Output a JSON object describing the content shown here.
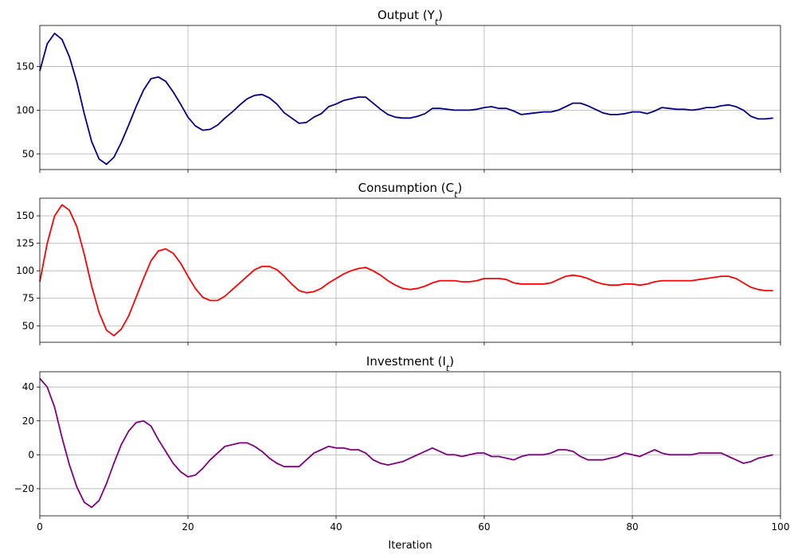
{
  "chart_data": [
    {
      "type": "line",
      "title": "Output (Y",
      "title_sub": "t",
      "color": "#00008b",
      "xlim": [
        0,
        100
      ],
      "ylim": [
        32,
        197
      ],
      "xticks": [
        0,
        20,
        40,
        60,
        80,
        100
      ],
      "yticks": [
        50,
        100,
        150
      ],
      "show_xtick_labels": false,
      "xlabel": "",
      "grid": true,
      "series": [
        {
          "x": [
            0,
            1,
            2,
            3,
            4,
            5,
            6,
            7,
            8,
            9,
            10,
            11,
            12,
            13,
            14,
            15,
            16,
            17,
            18,
            19,
            20,
            21,
            22,
            23,
            24,
            25,
            26,
            27,
            28,
            29,
            30,
            31,
            32,
            33,
            34,
            35,
            36,
            37,
            38,
            39,
            40,
            41,
            42,
            43,
            44,
            45,
            46,
            47,
            48,
            49,
            50,
            51,
            52,
            53,
            54,
            55,
            56,
            57,
            58,
            59,
            60,
            61,
            62,
            63,
            64,
            65,
            66,
            67,
            68,
            69,
            70,
            71,
            72,
            73,
            74,
            75,
            76,
            77,
            78,
            79,
            80,
            81,
            82,
            83,
            84,
            85,
            86,
            87,
            88,
            89,
            90,
            91,
            92,
            93,
            94,
            95,
            96,
            97,
            98,
            99
          ],
          "values": [
            145,
            176,
            188,
            181,
            161,
            132,
            96,
            64,
            44,
            38,
            46,
            63,
            83,
            104,
            123,
            136,
            138,
            133,
            121,
            107,
            92,
            82,
            77,
            78,
            83,
            91,
            98,
            106,
            113,
            117,
            118,
            114,
            107,
            97,
            91,
            85,
            86,
            92,
            96,
            104,
            107,
            111,
            113,
            115,
            115,
            108,
            101,
            95,
            92,
            91,
            91,
            93,
            96,
            102,
            102,
            101,
            100,
            100,
            100,
            101,
            103,
            104,
            102,
            102,
            99,
            95,
            96,
            97,
            98,
            98,
            100,
            104,
            108,
            108,
            105,
            101,
            97,
            95,
            95,
            96,
            98,
            98,
            96,
            99,
            103,
            102,
            101,
            101,
            100,
            101,
            103,
            103,
            105,
            106,
            104,
            100,
            93,
            90,
            90,
            91
          ]
        }
      ]
    },
    {
      "type": "line",
      "title": "Consumption (C",
      "title_sub": "t",
      "color": "#ff0000",
      "xlim": [
        0,
        100
      ],
      "ylim": [
        35,
        166
      ],
      "xticks": [
        0,
        20,
        40,
        60,
        80,
        100
      ],
      "yticks": [
        50,
        75,
        100,
        125,
        150
      ],
      "show_xtick_labels": false,
      "xlabel": "",
      "grid": true,
      "series": [
        {
          "x": [
            0,
            1,
            2,
            3,
            4,
            5,
            6,
            7,
            8,
            9,
            10,
            11,
            12,
            13,
            14,
            15,
            16,
            17,
            18,
            19,
            20,
            21,
            22,
            23,
            24,
            25,
            26,
            27,
            28,
            29,
            30,
            31,
            32,
            33,
            34,
            35,
            36,
            37,
            38,
            39,
            40,
            41,
            42,
            43,
            44,
            45,
            46,
            47,
            48,
            49,
            50,
            51,
            52,
            53,
            54,
            55,
            56,
            57,
            58,
            59,
            60,
            61,
            62,
            63,
            64,
            65,
            66,
            67,
            68,
            69,
            70,
            71,
            72,
            73,
            74,
            75,
            76,
            77,
            78,
            79,
            80,
            81,
            82,
            83,
            84,
            85,
            86,
            87,
            88,
            89,
            90,
            91,
            92,
            93,
            94,
            95,
            96,
            97,
            98,
            99
          ],
          "values": [
            90,
            125,
            150,
            160,
            155,
            140,
            115,
            86,
            62,
            46,
            41,
            47,
            59,
            76,
            93,
            109,
            118,
            120,
            116,
            107,
            95,
            84,
            76,
            73,
            73,
            77,
            83,
            89,
            95,
            101,
            104,
            104,
            101,
            95,
            88,
            82,
            80,
            81,
            84,
            89,
            93,
            97,
            100,
            102,
            103,
            100,
            96,
            91,
            87,
            84,
            83,
            84,
            86,
            89,
            91,
            91,
            91,
            90,
            90,
            91,
            93,
            93,
            93,
            92,
            89,
            88,
            88,
            88,
            88,
            89,
            92,
            95,
            96,
            95,
            93,
            90,
            88,
            87,
            87,
            88,
            88,
            87,
            88,
            90,
            91,
            91,
            91,
            91,
            91,
            92,
            93,
            94,
            95,
            95,
            93,
            89,
            85,
            83,
            82,
            82
          ]
        }
      ]
    },
    {
      "type": "line",
      "title": "Investment (I",
      "title_sub": "t",
      "color": "#800080",
      "xlim": [
        0,
        100
      ],
      "ylim": [
        -36,
        49
      ],
      "xticks": [
        0,
        20,
        40,
        60,
        80,
        100
      ],
      "yticks": [
        -20,
        0,
        20,
        40
      ],
      "show_xtick_labels": true,
      "xlabel": "Iteration",
      "grid": true,
      "series": [
        {
          "x": [
            0,
            1,
            2,
            3,
            4,
            5,
            6,
            7,
            8,
            9,
            10,
            11,
            12,
            13,
            14,
            15,
            16,
            17,
            18,
            19,
            20,
            21,
            22,
            23,
            24,
            25,
            26,
            27,
            28,
            29,
            30,
            31,
            32,
            33,
            34,
            35,
            36,
            37,
            38,
            39,
            40,
            41,
            42,
            43,
            44,
            45,
            46,
            47,
            48,
            49,
            50,
            51,
            52,
            53,
            54,
            55,
            56,
            57,
            58,
            59,
            60,
            61,
            62,
            63,
            64,
            65,
            66,
            67,
            68,
            69,
            70,
            71,
            72,
            73,
            74,
            75,
            76,
            77,
            78,
            79,
            80,
            81,
            82,
            83,
            84,
            85,
            86,
            87,
            88,
            89,
            90,
            91,
            92,
            93,
            94,
            95,
            96,
            97,
            98,
            99
          ],
          "values": [
            45,
            40,
            28,
            10,
            -6,
            -19,
            -28,
            -31,
            -27,
            -17,
            -5,
            6,
            14,
            19,
            20,
            17,
            9,
            2,
            -5,
            -10,
            -13,
            -12,
            -8,
            -3,
            1,
            5,
            6,
            7,
            7,
            5,
            2,
            -2,
            -5,
            -7,
            -7,
            -7,
            -3,
            1,
            3,
            5,
            4,
            4,
            3,
            3,
            1,
            -3,
            -5,
            -6,
            -5,
            -4,
            -2,
            0,
            2,
            4,
            2,
            0,
            0,
            -1,
            0,
            1,
            1,
            -1,
            -1,
            -2,
            -3,
            -1,
            0,
            0,
            0,
            1,
            3,
            3,
            2,
            -1,
            -3,
            -3,
            -3,
            -2,
            -1,
            1,
            0,
            -1,
            1,
            3,
            1,
            0,
            0,
            0,
            0,
            1,
            1,
            1,
            1,
            -1,
            -3,
            -5,
            -4,
            -2,
            -1,
            0
          ]
        }
      ]
    }
  ]
}
